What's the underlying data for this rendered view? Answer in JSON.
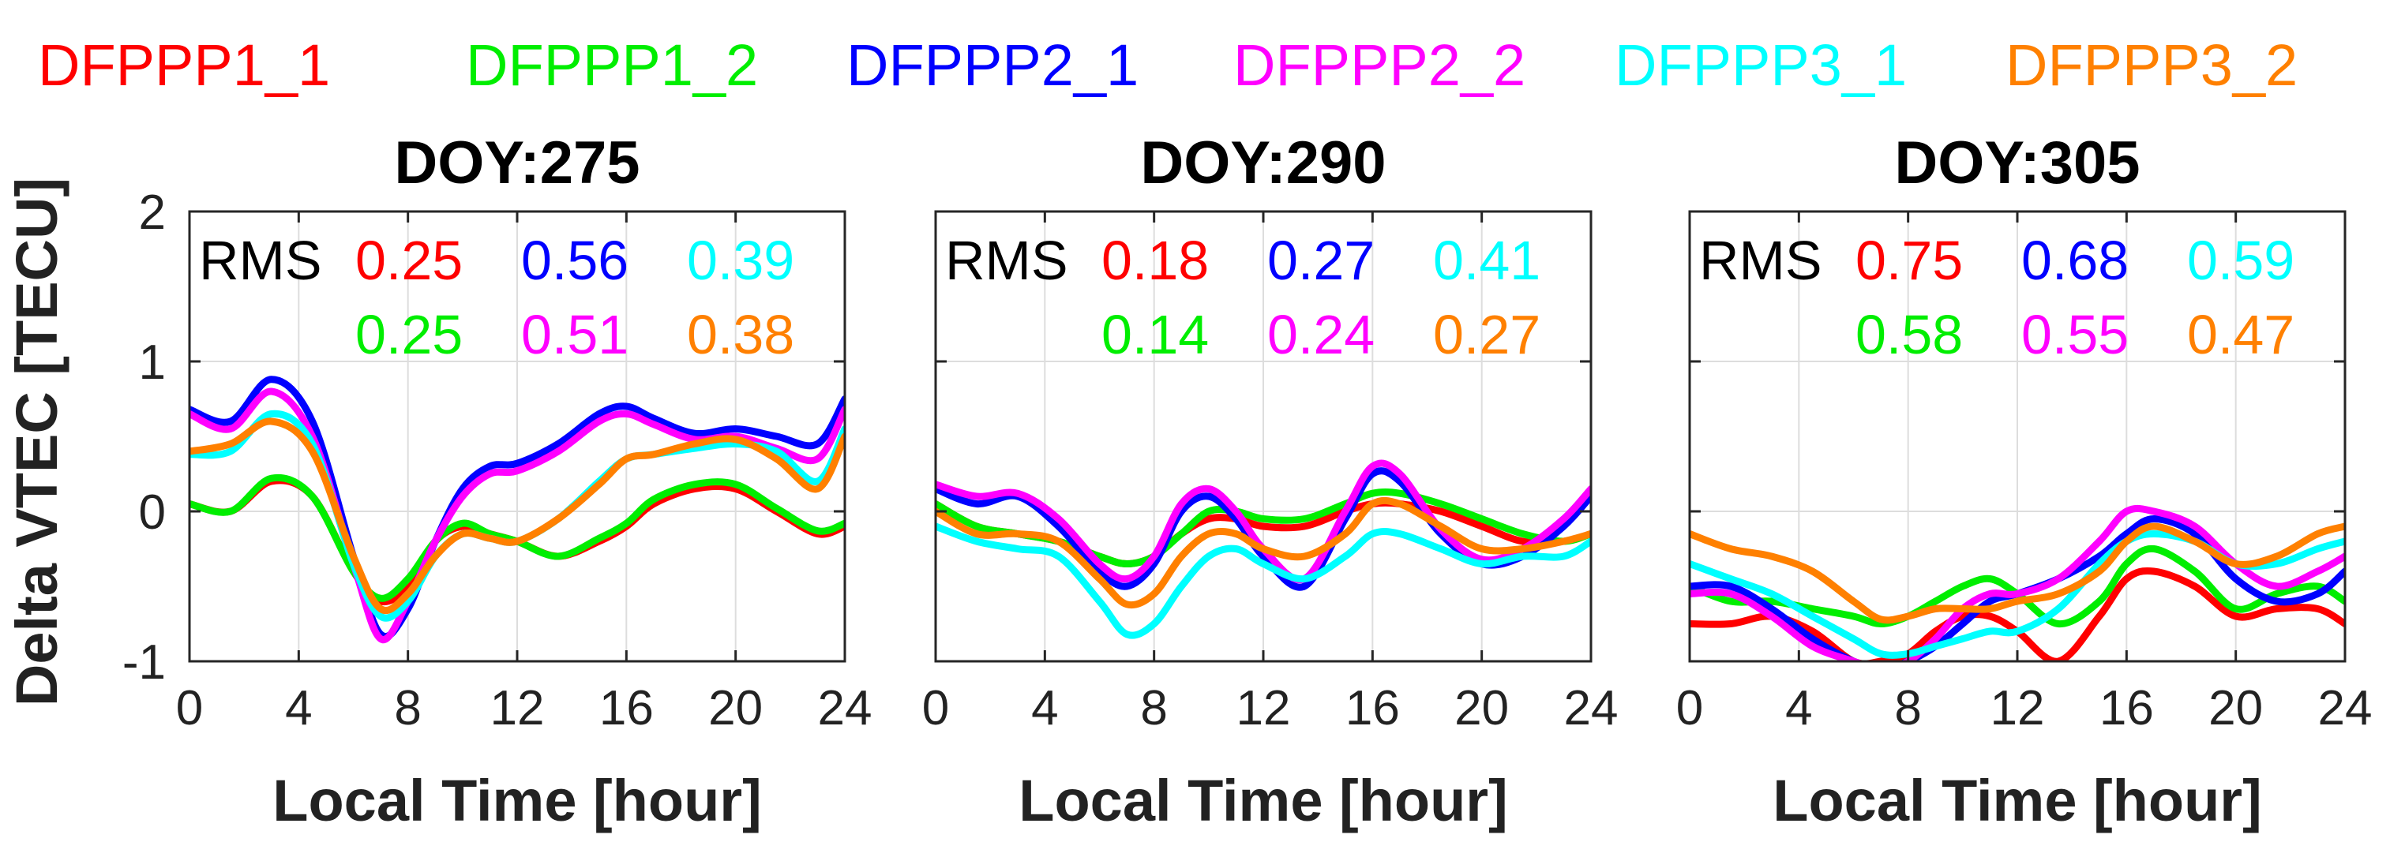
{
  "legend": [
    {
      "name": "DFPPP1_1",
      "color": "#ff0000"
    },
    {
      "name": "DFPPP1_2",
      "color": "#00ee00"
    },
    {
      "name": "DFPPP2_1",
      "color": "#0000ff"
    },
    {
      "name": "DFPPP2_2",
      "color": "#ff00ff"
    },
    {
      "name": "DFPPP3_1",
      "color": "#00ffff"
    },
    {
      "name": "DFPPP3_2",
      "color": "#ff8000"
    }
  ],
  "shared": {
    "ylabel": "Delta VTEC [TECU]",
    "xlabel": "Local Time [hour]",
    "rms_label": "RMS",
    "xlim": [
      0,
      24
    ],
    "ylim": [
      -1,
      2
    ],
    "xticks": [
      "0",
      "4",
      "8",
      "12",
      "16",
      "20",
      "24"
    ],
    "yticks": [
      "-1",
      "0",
      "1",
      "2"
    ],
    "grid": true
  },
  "chart_data": [
    {
      "type": "line",
      "title": "DOY:275",
      "x": [
        0,
        1.5,
        3,
        4.5,
        6,
        7,
        8,
        9,
        10,
        11,
        12,
        13.5,
        15,
        16,
        17,
        18.5,
        20,
        21.5,
        23,
        24
      ],
      "rms": [
        "0.25",
        "0.56",
        "0.39",
        "0.25",
        "0.51",
        "0.38"
      ],
      "series": [
        {
          "name": "DFPPP1_1",
          "values": [
            0.05,
            0.0,
            0.2,
            0.1,
            -0.4,
            -0.6,
            -0.5,
            -0.2,
            -0.1,
            -0.15,
            -0.2,
            -0.3,
            -0.2,
            -0.1,
            0.05,
            0.15,
            0.15,
            0.0,
            -0.15,
            -0.1
          ]
        },
        {
          "name": "DFPPP1_2",
          "values": [
            0.05,
            0.0,
            0.22,
            0.1,
            -0.4,
            -0.58,
            -0.45,
            -0.2,
            -0.08,
            -0.15,
            -0.2,
            -0.3,
            -0.18,
            -0.08,
            0.08,
            0.18,
            0.18,
            0.02,
            -0.13,
            -0.08
          ]
        },
        {
          "name": "DFPPP2_1",
          "values": [
            0.68,
            0.6,
            0.88,
            0.6,
            -0.3,
            -0.82,
            -0.65,
            -0.2,
            0.15,
            0.3,
            0.32,
            0.45,
            0.65,
            0.7,
            0.62,
            0.52,
            0.55,
            0.5,
            0.45,
            0.75
          ]
        },
        {
          "name": "DFPPP2_2",
          "values": [
            0.65,
            0.55,
            0.8,
            0.5,
            -0.35,
            -0.85,
            -0.6,
            -0.2,
            0.1,
            0.25,
            0.27,
            0.4,
            0.6,
            0.65,
            0.58,
            0.48,
            0.5,
            0.42,
            0.35,
            0.68
          ]
        },
        {
          "name": "DFPPP3_1",
          "values": [
            0.38,
            0.4,
            0.65,
            0.45,
            -0.35,
            -0.7,
            -0.6,
            -0.3,
            -0.15,
            -0.18,
            -0.2,
            -0.05,
            0.2,
            0.35,
            0.38,
            0.42,
            0.45,
            0.4,
            0.2,
            0.55
          ]
        },
        {
          "name": "DFPPP3_2",
          "values": [
            0.4,
            0.45,
            0.6,
            0.4,
            -0.3,
            -0.65,
            -0.55,
            -0.3,
            -0.15,
            -0.18,
            -0.2,
            -0.05,
            0.18,
            0.35,
            0.38,
            0.45,
            0.48,
            0.35,
            0.15,
            0.5
          ]
        }
      ]
    },
    {
      "type": "line",
      "title": "DOY:290",
      "x": [
        0,
        1.5,
        3,
        4.5,
        6,
        7,
        8,
        9,
        10,
        11,
        12,
        13.5,
        15,
        16,
        17,
        18.5,
        20,
        21.5,
        23,
        24
      ],
      "rms": [
        "0.18",
        "0.27",
        "0.41",
        "0.14",
        "0.24",
        "0.27"
      ],
      "series": [
        {
          "name": "DFPPP1_1",
          "values": [
            0.05,
            -0.1,
            -0.15,
            -0.2,
            -0.3,
            -0.35,
            -0.3,
            -0.15,
            -0.05,
            -0.05,
            -0.1,
            -0.1,
            0.0,
            0.05,
            0.05,
            0.0,
            -0.1,
            -0.2,
            -0.2,
            -0.15
          ]
        },
        {
          "name": "DFPPP1_2",
          "values": [
            0.05,
            -0.1,
            -0.15,
            -0.2,
            -0.3,
            -0.35,
            -0.3,
            -0.15,
            0.0,
            0.0,
            -0.05,
            -0.05,
            0.05,
            0.12,
            0.12,
            0.05,
            -0.05,
            -0.15,
            -0.2,
            -0.15
          ]
        },
        {
          "name": "DFPPP2_1",
          "values": [
            0.15,
            0.05,
            0.1,
            -0.1,
            -0.4,
            -0.5,
            -0.35,
            0.0,
            0.1,
            -0.05,
            -0.3,
            -0.5,
            -0.05,
            0.25,
            0.2,
            -0.15,
            -0.35,
            -0.3,
            -0.1,
            0.1
          ]
        },
        {
          "name": "DFPPP2_2",
          "values": [
            0.18,
            0.1,
            0.12,
            -0.05,
            -0.35,
            -0.45,
            -0.3,
            0.05,
            0.15,
            0.0,
            -0.25,
            -0.45,
            0.0,
            0.3,
            0.25,
            -0.12,
            -0.32,
            -0.25,
            -0.05,
            0.15
          ]
        },
        {
          "name": "DFPPP3_1",
          "values": [
            -0.1,
            -0.2,
            -0.25,
            -0.3,
            -0.6,
            -0.82,
            -0.75,
            -0.5,
            -0.3,
            -0.25,
            -0.35,
            -0.45,
            -0.3,
            -0.15,
            -0.15,
            -0.25,
            -0.35,
            -0.3,
            -0.3,
            -0.2
          ]
        },
        {
          "name": "DFPPP3_2",
          "values": [
            0.0,
            -0.15,
            -0.15,
            -0.2,
            -0.45,
            -0.62,
            -0.55,
            -0.3,
            -0.15,
            -0.15,
            -0.25,
            -0.3,
            -0.15,
            0.05,
            0.05,
            -0.1,
            -0.25,
            -0.25,
            -0.2,
            -0.15
          ]
        }
      ]
    },
    {
      "type": "line",
      "title": "DOY:305",
      "x": [
        0,
        1.5,
        3,
        4.5,
        6,
        7,
        8,
        9,
        10,
        11,
        12,
        13.5,
        15,
        16,
        17,
        18.5,
        20,
        21.5,
        23,
        24
      ],
      "rms": [
        "0.75",
        "0.68",
        "0.59",
        "0.58",
        "0.55",
        "0.47"
      ],
      "series": [
        {
          "name": "DFPPP1_1",
          "values": [
            -0.75,
            -0.75,
            -0.7,
            -0.8,
            -1.0,
            -1.0,
            -0.95,
            -0.8,
            -0.7,
            -0.7,
            -0.8,
            -1.0,
            -0.7,
            -0.45,
            -0.4,
            -0.5,
            -0.7,
            -0.65,
            -0.65,
            -0.75
          ]
        },
        {
          "name": "DFPPP1_2",
          "values": [
            -0.5,
            -0.6,
            -0.6,
            -0.65,
            -0.7,
            -0.75,
            -0.7,
            -0.6,
            -0.5,
            -0.45,
            -0.55,
            -0.75,
            -0.6,
            -0.35,
            -0.25,
            -0.4,
            -0.65,
            -0.55,
            -0.5,
            -0.6
          ]
        },
        {
          "name": "DFPPP2_1",
          "values": [
            -0.5,
            -0.5,
            -0.65,
            -0.85,
            -1.0,
            -1.05,
            -1.0,
            -0.9,
            -0.75,
            -0.6,
            -0.55,
            -0.45,
            -0.3,
            -0.15,
            -0.05,
            -0.15,
            -0.45,
            -0.6,
            -0.55,
            -0.4
          ]
        },
        {
          "name": "DFPPP2_2",
          "values": [
            -0.55,
            -0.55,
            -0.7,
            -0.9,
            -1.0,
            -1.05,
            -1.0,
            -0.85,
            -0.65,
            -0.55,
            -0.55,
            -0.45,
            -0.2,
            0.0,
            0.0,
            -0.1,
            -0.35,
            -0.5,
            -0.4,
            -0.3
          ]
        },
        {
          "name": "DFPPP3_1",
          "values": [
            -0.35,
            -0.45,
            -0.55,
            -0.7,
            -0.85,
            -0.95,
            -0.95,
            -0.9,
            -0.85,
            -0.8,
            -0.8,
            -0.65,
            -0.35,
            -0.2,
            -0.15,
            -0.2,
            -0.35,
            -0.35,
            -0.25,
            -0.2
          ]
        },
        {
          "name": "DFPPP3_2",
          "values": [
            -0.15,
            -0.25,
            -0.3,
            -0.4,
            -0.6,
            -0.72,
            -0.7,
            -0.65,
            -0.65,
            -0.65,
            -0.6,
            -0.55,
            -0.4,
            -0.2,
            -0.1,
            -0.2,
            -0.35,
            -0.3,
            -0.15,
            -0.1
          ]
        }
      ]
    }
  ]
}
